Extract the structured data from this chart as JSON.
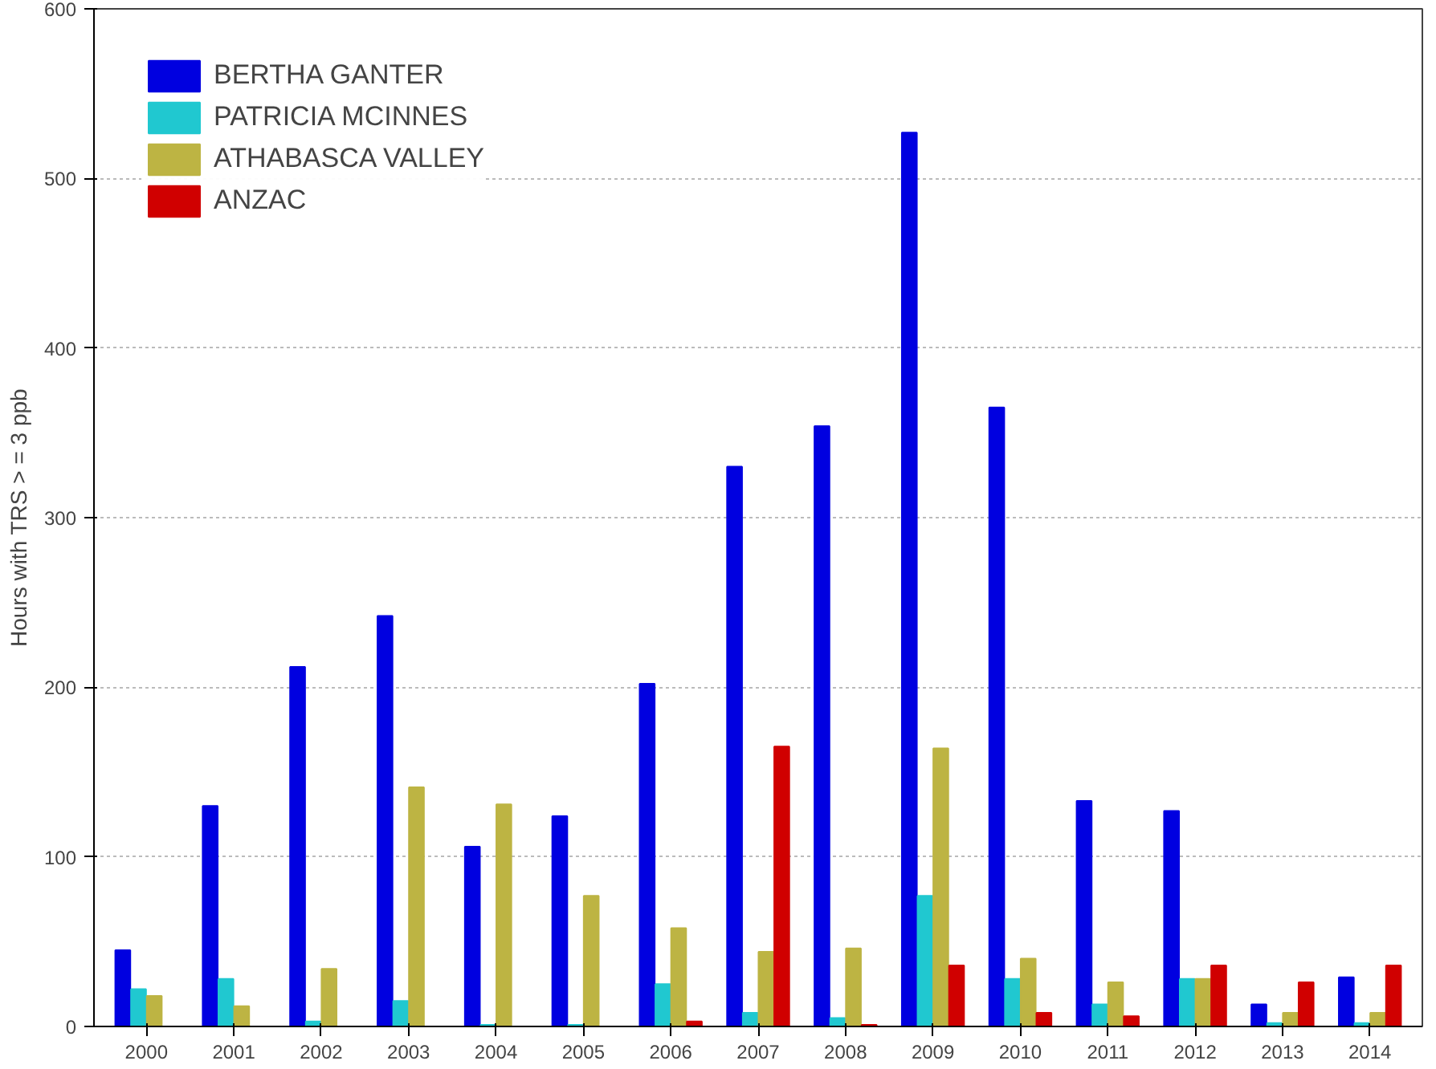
{
  "chart_data": {
    "type": "bar",
    "ylabel": "Hours with TRS > = 3 ppb",
    "categories": [
      "2000",
      "2001",
      "2002",
      "2003",
      "2004",
      "2005",
      "2006",
      "2007",
      "2008",
      "2009",
      "2010",
      "2011",
      "2012",
      "2013",
      "2014"
    ],
    "series": [
      {
        "name": "BERTHA GANTER",
        "color": "#0000e0",
        "values": [
          45,
          130,
          212,
          242,
          106,
          124,
          202,
          330,
          354,
          527,
          365,
          133,
          127,
          13,
          29
        ]
      },
      {
        "name": "PATRICIA MCINNES",
        "color": "#20c8d0",
        "values": [
          22,
          28,
          3,
          15,
          1,
          1,
          25,
          8,
          5,
          77,
          28,
          13,
          28,
          2,
          2
        ]
      },
      {
        "name": "ATHABASCA VALLEY",
        "color": "#bdb443",
        "values": [
          18,
          12,
          34,
          141,
          131,
          77,
          58,
          44,
          46,
          164,
          40,
          26,
          28,
          8,
          8
        ]
      },
      {
        "name": "ANZAC",
        "color": "#d00000",
        "values": [
          0,
          0,
          0,
          0,
          0,
          0,
          3,
          165,
          1,
          36,
          8,
          6,
          36,
          26,
          36
        ]
      }
    ],
    "ylim": [
      0,
      600
    ],
    "yticks": [
      0,
      100,
      200,
      300,
      400,
      500,
      600
    ],
    "grid": "y",
    "legend": "top left"
  }
}
